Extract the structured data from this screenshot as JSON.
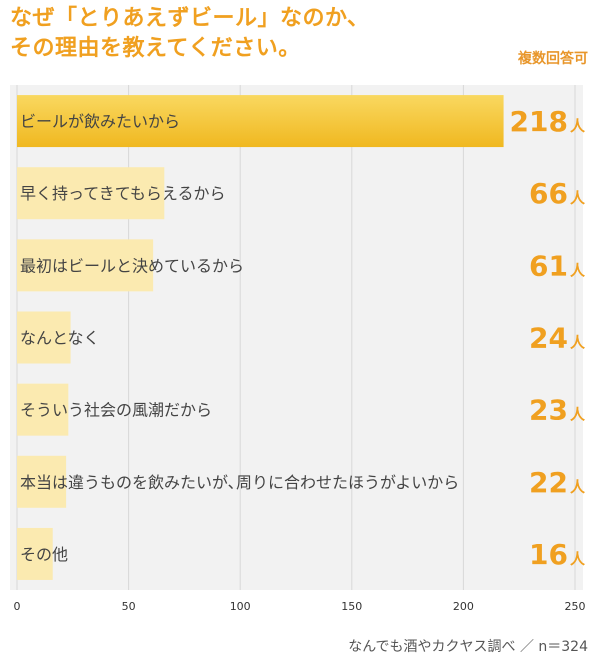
{
  "title_line1": "なぜ「とりあえずビール」なのか、",
  "title_line2": "その理由を教えてください。",
  "note": "複数回答可",
  "footer": "なんでも酒やカクヤス調べ ／ n＝324",
  "colors": {
    "accent": "#f0a020",
    "bar_top": "#f5c230",
    "bar_light": "#fbeab0",
    "panel": "#f2f2f2",
    "grid": "#d8d8d8"
  },
  "chart_data": {
    "type": "bar",
    "orientation": "horizontal",
    "categories": [
      "ビールが飲みたいから",
      "早く持ってきてもらえるから",
      "最初はビールと決めているから",
      "なんとなく",
      "そういう社会の風潮だから",
      "本当は違うものを飲みたいが､周りに合わせたほうがよいから",
      "その他"
    ],
    "values": [
      218,
      66,
      61,
      24,
      23,
      22,
      16
    ],
    "unit": "人",
    "xlim": [
      0,
      250
    ],
    "xticks": [
      0,
      50,
      100,
      150,
      200,
      250
    ],
    "grid": true
  }
}
